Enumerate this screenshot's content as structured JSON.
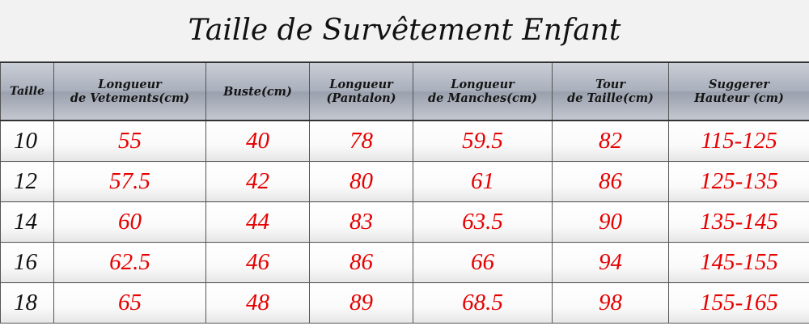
{
  "title": "Taille de Survêtement Enfant",
  "colors": {
    "header_bg": "#aab0bc",
    "value_text": "#e60000",
    "size_text": "#111111",
    "border": "#555555"
  },
  "table": {
    "headers": [
      {
        "line1": "Taille",
        "line2": ""
      },
      {
        "line1": "Longueur",
        "line2": "de Vetements(cm)"
      },
      {
        "line1": "Buste(cm)",
        "line2": ""
      },
      {
        "line1": "Longueur",
        "line2": "(Pantalon)"
      },
      {
        "line1": "Longueur",
        "line2": "de Manches(cm)"
      },
      {
        "line1": "Tour",
        "line2": "de Taille(cm)"
      },
      {
        "line1": "Suggerer",
        "line2": "Hauteur (cm)"
      }
    ],
    "rows": [
      [
        "10",
        "55",
        "40",
        "78",
        "59.5",
        "82",
        "115-125"
      ],
      [
        "12",
        "57.5",
        "42",
        "80",
        "61",
        "86",
        "125-135"
      ],
      [
        "14",
        "60",
        "44",
        "83",
        "63.5",
        "90",
        "135-145"
      ],
      [
        "16",
        "62.5",
        "46",
        "86",
        "66",
        "94",
        "145-155"
      ],
      [
        "18",
        "65",
        "48",
        "89",
        "68.5",
        "98",
        "155-165"
      ]
    ]
  }
}
